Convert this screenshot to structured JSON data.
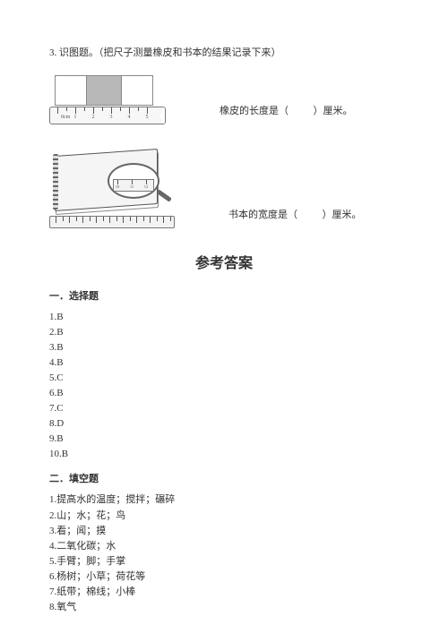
{
  "question": {
    "number": "3.",
    "title": "识图题。（把尺子测量橡皮和书本的结果记录下来）"
  },
  "figure1": {
    "caption_prefix": "橡皮的长度是（",
    "caption_suffix": "）厘米。",
    "ruler_start_label": "0cm",
    "ruler_labels": [
      "1",
      "2",
      "3",
      "4",
      "5"
    ],
    "tick_spacing_px": 20
  },
  "figure2": {
    "caption_prefix": "书本的宽度是（",
    "caption_suffix": "）厘米。",
    "mag_labels": [
      "10",
      "11",
      "12",
      "13"
    ]
  },
  "answers": {
    "heading": "参考答案",
    "section1_title": "一．选择题",
    "choices": [
      "1.B",
      "2.B",
      "3.B",
      "4.B",
      "5.C",
      "6.B",
      "7.C",
      "8.D",
      "9.B",
      "10.B"
    ],
    "section2_title": "二．填空题",
    "fills": [
      "1.提高水的温度；搅拌；碾碎",
      "2.山；水；花；鸟",
      "3.看；闻；摸",
      "4.二氧化碳；水",
      "5.手臂；脚；手掌",
      "6.杨树；小草；荷花等",
      "7.纸带；棉线；小棒",
      "8.氧气"
    ]
  },
  "colors": {
    "text": "#333333",
    "rule": "#777777",
    "eraser_fill": "#b8b8b8",
    "bg": "#ffffff"
  }
}
